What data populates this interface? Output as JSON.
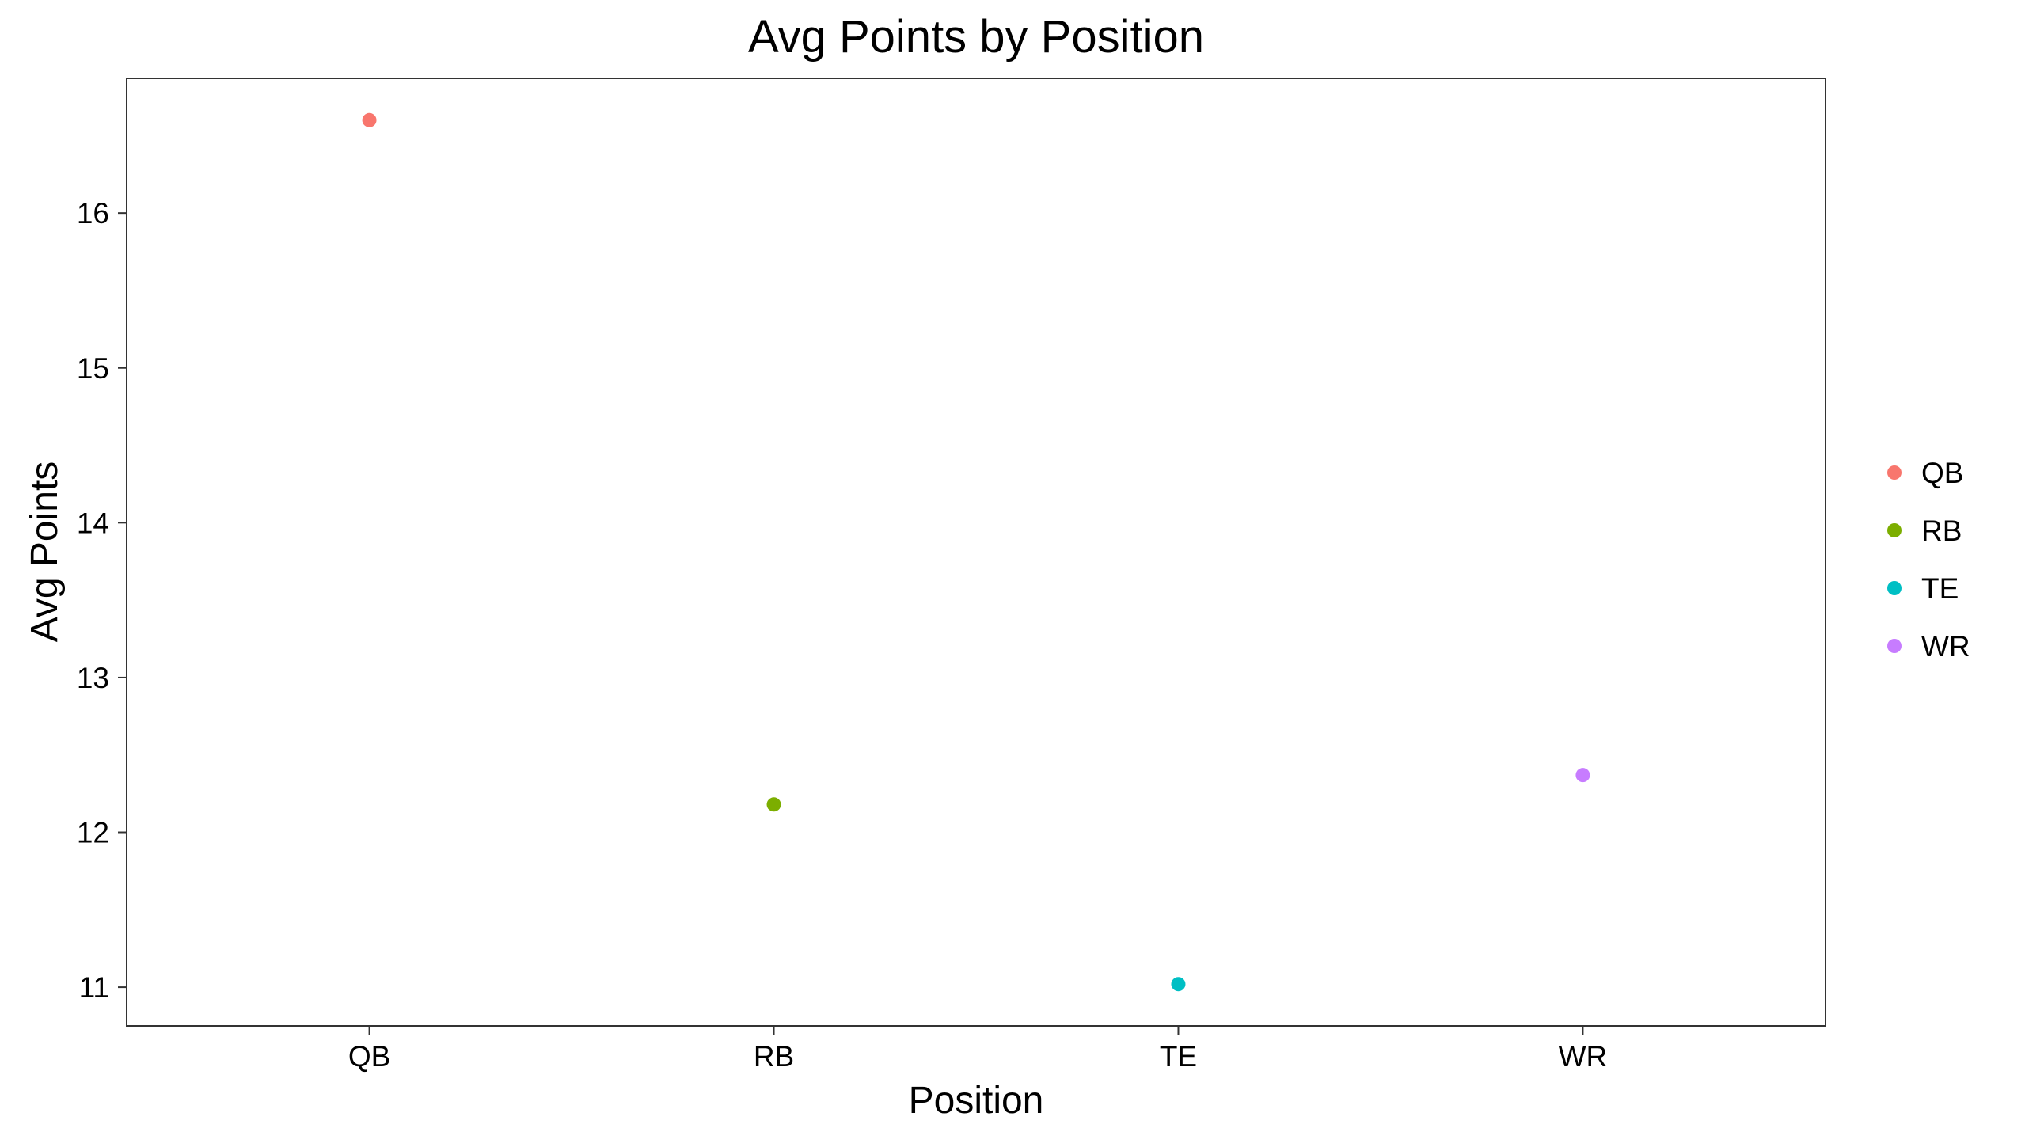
{
  "chart_data": {
    "type": "scatter",
    "title": "Avg Points by Position",
    "xlabel": "Position",
    "ylabel": "Avg Points",
    "categories": [
      "QB",
      "RB",
      "TE",
      "WR"
    ],
    "values": [
      16.6,
      12.18,
      11.02,
      12.37
    ],
    "colors": [
      "#F8766D",
      "#7CAE00",
      "#00BFC4",
      "#C77CFF"
    ],
    "y_ticks": [
      11,
      12,
      13,
      14,
      15,
      16
    ],
    "ylim": [
      10.75,
      16.87
    ],
    "grid": false,
    "legend": {
      "placement": "right",
      "entries": [
        "QB",
        "RB",
        "TE",
        "WR"
      ]
    }
  }
}
